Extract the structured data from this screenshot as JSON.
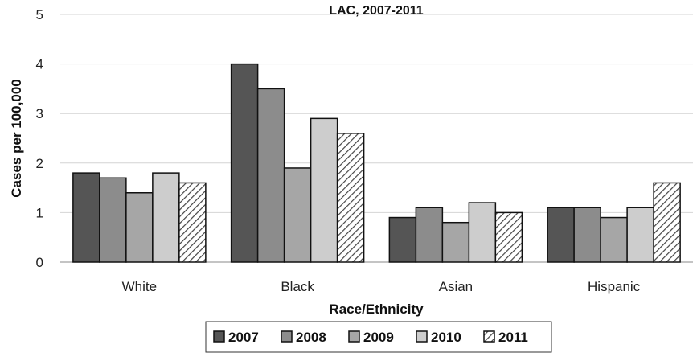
{
  "chart_data": {
    "type": "bar",
    "title": "LAC, 2007-2011",
    "xlabel": "Race/Ethnicity",
    "ylabel": "Cases per 100,000",
    "ylim": [
      0,
      5
    ],
    "yticks": [
      0,
      1,
      2,
      3,
      4,
      5
    ],
    "grid": true,
    "legend_position": "bottom",
    "categories": [
      "White",
      "Black",
      "Asian",
      "Hispanic"
    ],
    "series": [
      {
        "name": "2007",
        "values": [
          1.8,
          4.0,
          0.9,
          1.1
        ],
        "color": "#555555",
        "pattern": "solid"
      },
      {
        "name": "2008",
        "values": [
          1.7,
          3.5,
          1.1,
          1.1
        ],
        "color": "#8c8c8c",
        "pattern": "solid"
      },
      {
        "name": "2009",
        "values": [
          1.4,
          1.9,
          0.8,
          0.9
        ],
        "color": "#a6a6a6",
        "pattern": "solid"
      },
      {
        "name": "2010",
        "values": [
          1.8,
          2.9,
          1.2,
          1.1
        ],
        "color": "#cdcdcd",
        "pattern": "solid"
      },
      {
        "name": "2011",
        "values": [
          1.6,
          2.6,
          1.0,
          1.6
        ],
        "color": "#ffffff",
        "pattern": "hatch"
      }
    ]
  }
}
